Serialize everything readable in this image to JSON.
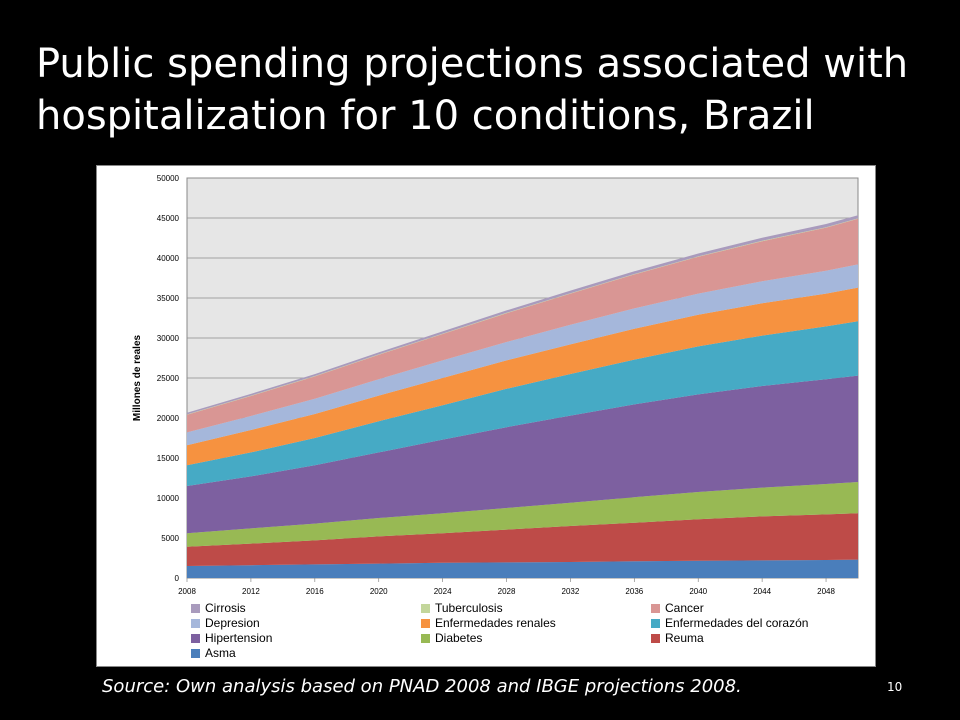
{
  "slide": {
    "title": "Public spending projections associated with hospitalization for 10 conditions, Brazil",
    "source": "Source: Own analysis based on PNAD 2008  and IBGE projections 2008.",
    "page_number": "10"
  },
  "chart_data": {
    "type": "area",
    "stacked": true,
    "ylabel": "Millones de reales",
    "ylim": [
      0,
      50000
    ],
    "yticks": [
      0,
      5000,
      10000,
      15000,
      20000,
      25000,
      30000,
      35000,
      40000,
      45000,
      50000
    ],
    "xlim": [
      2008,
      2050
    ],
    "xticks": [
      2008,
      2012,
      2016,
      2020,
      2024,
      2028,
      2032,
      2036,
      2040,
      2044,
      2048
    ],
    "x": [
      2008,
      2012,
      2016,
      2020,
      2024,
      2028,
      2032,
      2036,
      2040,
      2044,
      2048,
      2050
    ],
    "grid": true,
    "legend_position": "bottom",
    "series": [
      {
        "name": "Asma",
        "color": "#4a7ebb",
        "values": [
          1500,
          1600,
          1700,
          1800,
          1900,
          1950,
          2000,
          2100,
          2150,
          2200,
          2250,
          2300
        ]
      },
      {
        "name": "Reuma",
        "color": "#be4b48",
        "values": [
          2400,
          2700,
          3000,
          3400,
          3700,
          4100,
          4500,
          4800,
          5200,
          5500,
          5700,
          5800
        ]
      },
      {
        "name": "Diabetes",
        "color": "#98b954",
        "values": [
          1700,
          1900,
          2100,
          2300,
          2500,
          2700,
          2900,
          3200,
          3400,
          3600,
          3800,
          3900
        ]
      },
      {
        "name": "Hipertension",
        "color": "#7d60a0",
        "values": [
          5900,
          6500,
          7300,
          8200,
          9200,
          10100,
          10900,
          11600,
          12200,
          12700,
          13100,
          13300
        ]
      },
      {
        "name": "Enfermedades del corazón",
        "color": "#46aac5",
        "values": [
          2600,
          3000,
          3400,
          3900,
          4300,
          4800,
          5200,
          5600,
          6000,
          6300,
          6600,
          6800
        ]
      },
      {
        "name": "Enfermedades renales",
        "color": "#f69240",
        "values": [
          2500,
          2800,
          3000,
          3200,
          3400,
          3550,
          3700,
          3850,
          3950,
          4050,
          4100,
          4200
        ]
      },
      {
        "name": "Depresion",
        "color": "#a5b7db",
        "values": [
          1600,
          1750,
          1900,
          2050,
          2200,
          2300,
          2450,
          2550,
          2650,
          2750,
          2850,
          2900
        ]
      },
      {
        "name": "Cancer",
        "color": "#d99694",
        "values": [
          2200,
          2500,
          2800,
          3050,
          3300,
          3600,
          3900,
          4250,
          4600,
          5000,
          5400,
          5700
        ]
      },
      {
        "name": "Tuberculosis",
        "color": "#c3d69b",
        "values": [
          50,
          50,
          50,
          50,
          50,
          50,
          50,
          50,
          50,
          50,
          50,
          50
        ]
      },
      {
        "name": "Cirrosis",
        "color": "#a99bbd",
        "values": [
          200,
          220,
          240,
          260,
          280,
          300,
          320,
          340,
          360,
          380,
          400,
          400
        ]
      }
    ],
    "legend_order": [
      "Cirrosis",
      "Tuberculosis",
      "Cancer",
      "Depresion",
      "Enfermedades renales",
      "Enfermedades del corazón",
      "Hipertension",
      "Diabetes",
      "Reuma",
      "Asma"
    ]
  }
}
